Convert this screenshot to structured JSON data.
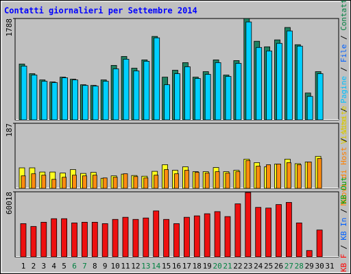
{
  "chart_data": {
    "type": "bar",
    "title": "Contatti giornalieri per Settembre 2014",
    "categories": [
      "1",
      "2",
      "3",
      "4",
      "5",
      "6",
      "7",
      "8",
      "9",
      "10",
      "11",
      "12",
      "13",
      "14",
      "15",
      "16",
      "17",
      "18",
      "19",
      "20",
      "21",
      "22",
      "23",
      "24",
      "25",
      "26",
      "27",
      "28",
      "29",
      "30",
      "31"
    ],
    "label_colors": [
      "#000000",
      "#000000",
      "#000000",
      "#000000",
      "#000000",
      "#008040",
      "#008040",
      "#000000",
      "#000000",
      "#000000",
      "#000000",
      "#000000",
      "#008040",
      "#008040",
      "#000000",
      "#000000",
      "#000000",
      "#000000",
      "#000000",
      "#008040",
      "#008040",
      "#000000",
      "#000000",
      "#000000",
      "#000000",
      "#000000",
      "#008040",
      "#008040",
      "#000000",
      "#000000",
      "#000000"
    ],
    "panels": [
      {
        "ylim": [
          0,
          1788
        ],
        "yticks": [
          1788
        ],
        "legend": [
          {
            "text": "Visite",
            "color": "#d8c800"
          },
          {
            "text": "Pagine",
            "color": "#00c0ff"
          },
          {
            "text": "File",
            "color": "#0060ff"
          },
          {
            "text": "Contatti",
            "color": "#008040"
          }
        ],
        "series": [
          {
            "color": "#208060",
            "values": [
              985,
              815,
              705,
              669,
              754,
              718,
              620,
              608,
              705,
              961,
              1119,
              912,
              1058,
              1472,
              754,
              876,
              1010,
              754,
              851,
              1058,
              791,
              1046,
              1788,
              1387,
              1289,
              1411,
              1630,
              1326,
              474,
              851,
              null
            ]
          },
          {
            "color": "#00d0ff",
            "values": [
              949,
              791,
              681,
              657,
              742,
              705,
              608,
              596,
              681,
              900,
              1070,
              864,
              1034,
              1447,
              620,
              815,
              937,
              730,
              803,
              1010,
              766,
              997,
              1727,
              1277,
              1216,
              1350,
              1569,
              1301,
              414,
              815,
              null
            ]
          }
        ]
      },
      {
        "ylim": [
          0,
          187
        ],
        "yticks": [
          187
        ],
        "legend": [
          {
            "text": "Nuovi di Host",
            "color": "#ff8000"
          },
          {
            "text": "Visite",
            "color": "#d8c800"
          }
        ],
        "series": [
          {
            "color": "#ffff20",
            "values": [
              59,
              59,
              47,
              47,
              44,
              54,
              43,
              46,
              29,
              36,
              41,
              37,
              35,
              49,
              68,
              52,
              62,
              48,
              48,
              60,
              48,
              52,
              84,
              74,
              62,
              70,
              84,
              71,
              76,
              92,
              null
            ]
          },
          {
            "color": "#ff8c10",
            "values": [
              36,
              42,
              38,
              26,
              32,
              38,
              36,
              38,
              30,
              32,
              42,
              34,
              30,
              38,
              54,
              42,
              52,
              46,
              44,
              48,
              44,
              48,
              80,
              64,
              68,
              70,
              74,
              68,
              76,
              86,
              null
            ]
          }
        ]
      },
      {
        "ylim": [
          0,
          60018
        ],
        "yticks": [
          60018
        ],
        "legend": [
          {
            "text": "KB F",
            "color": "#ff0000"
          },
          {
            "text": "KB In",
            "color": "#0060ff"
          },
          {
            "text": "KB Out",
            "color": "#00a000"
          }
        ],
        "series": [
          {
            "color": "#ee1010",
            "values": [
              30663,
              28053,
              31968,
              35230,
              35230,
              31315,
              31968,
              31968,
              30663,
              34577,
              36534,
              34577,
              35882,
              42406,
              34577,
              30663,
              36534,
              37839,
              39796,
              41754,
              37187,
              48930,
              59368,
              45668,
              45016,
              48278,
              50235,
              31315,
              5872,
              24791,
              null
            ]
          }
        ]
      }
    ]
  }
}
